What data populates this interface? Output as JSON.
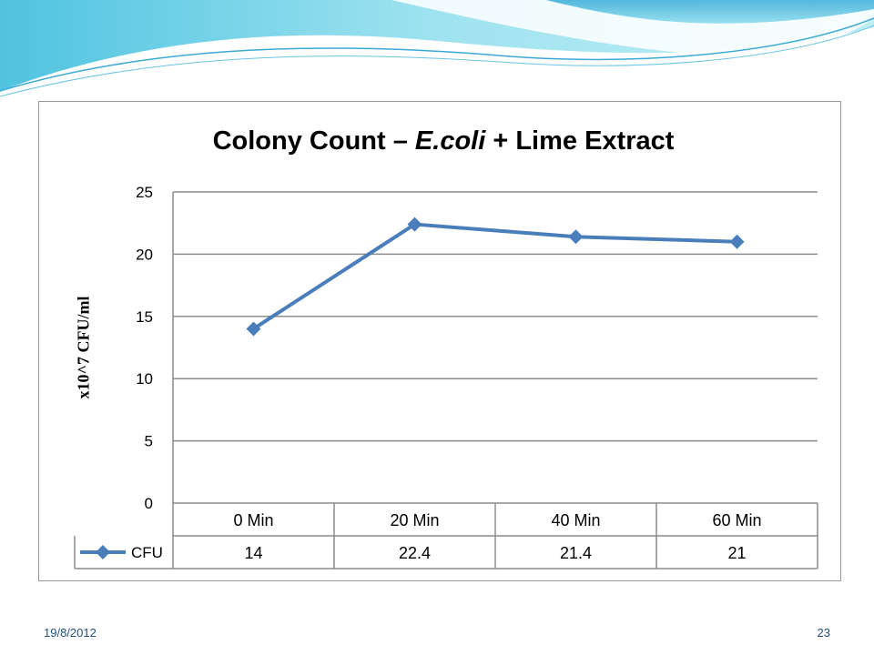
{
  "slide": {
    "date": "19/8/2012",
    "page_number": "23"
  },
  "chart_data": {
    "type": "line",
    "title_parts": [
      "Colony Count – ",
      "E.coli",
      " + Lime Extract"
    ],
    "ylabel": "x10^7 CFU/ml",
    "categories": [
      "0 Min",
      "20 Min",
      "40 Min",
      "60 Min"
    ],
    "series": [
      {
        "name": "CFU",
        "values": [
          14,
          22.4,
          21.4,
          21
        ],
        "value_labels": [
          "14",
          "22.4",
          "21.4",
          "21"
        ]
      }
    ],
    "ylim": [
      0,
      25
    ],
    "yticks": [
      0,
      5,
      10,
      15,
      20,
      25
    ],
    "grid": true,
    "legend": "data-table-left",
    "data_table": true,
    "colors": {
      "series": "#4a7ebb",
      "grid": "#8c8c8c",
      "frame": "#9a9a9a"
    }
  }
}
